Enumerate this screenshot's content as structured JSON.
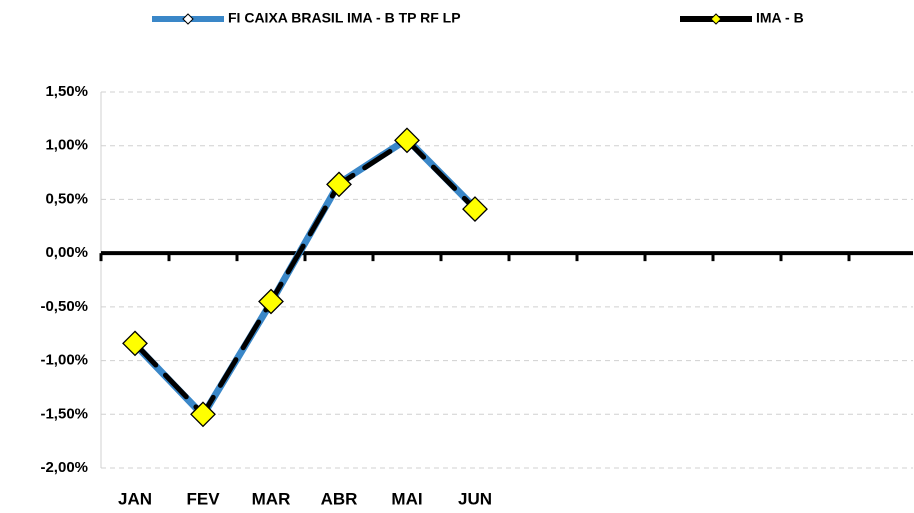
{
  "chart_data": {
    "type": "line",
    "categories": [
      "JAN",
      "FEV",
      "MAR",
      "ABR",
      "MAI",
      "JUN",
      null,
      null,
      null,
      null,
      null,
      null
    ],
    "series": [
      {
        "name": "FI CAIXA BRASIL IMA - B TP RF LP",
        "color": "#3a87c8",
        "values": [
          -0.85,
          -1.51,
          -0.46,
          0.65,
          1.06,
          0.42,
          null,
          null,
          null,
          null,
          null,
          null
        ]
      },
      {
        "name": "IMA - B",
        "color": "#000000",
        "marker_color": "#ffff00",
        "values": [
          -0.84,
          -1.5,
          -0.45,
          0.64,
          1.05,
          0.41,
          null,
          null,
          null,
          null,
          null,
          null
        ]
      }
    ],
    "ylim": [
      -2,
      1.5
    ],
    "yticks": [
      {
        "value": -2,
        "label": "-2,00%"
      },
      {
        "value": -1.5,
        "label": "-1,50%"
      },
      {
        "value": -1,
        "label": "-1,00%"
      },
      {
        "value": -0.5,
        "label": "-0,50%"
      },
      {
        "value": 0,
        "label": "0,00%"
      },
      {
        "value": 0.5,
        "label": "0,50%"
      },
      {
        "value": 1,
        "label": "1,00%"
      },
      {
        "value": 1.5,
        "label": "1,50%"
      }
    ],
    "grid": true,
    "legend": "top"
  }
}
